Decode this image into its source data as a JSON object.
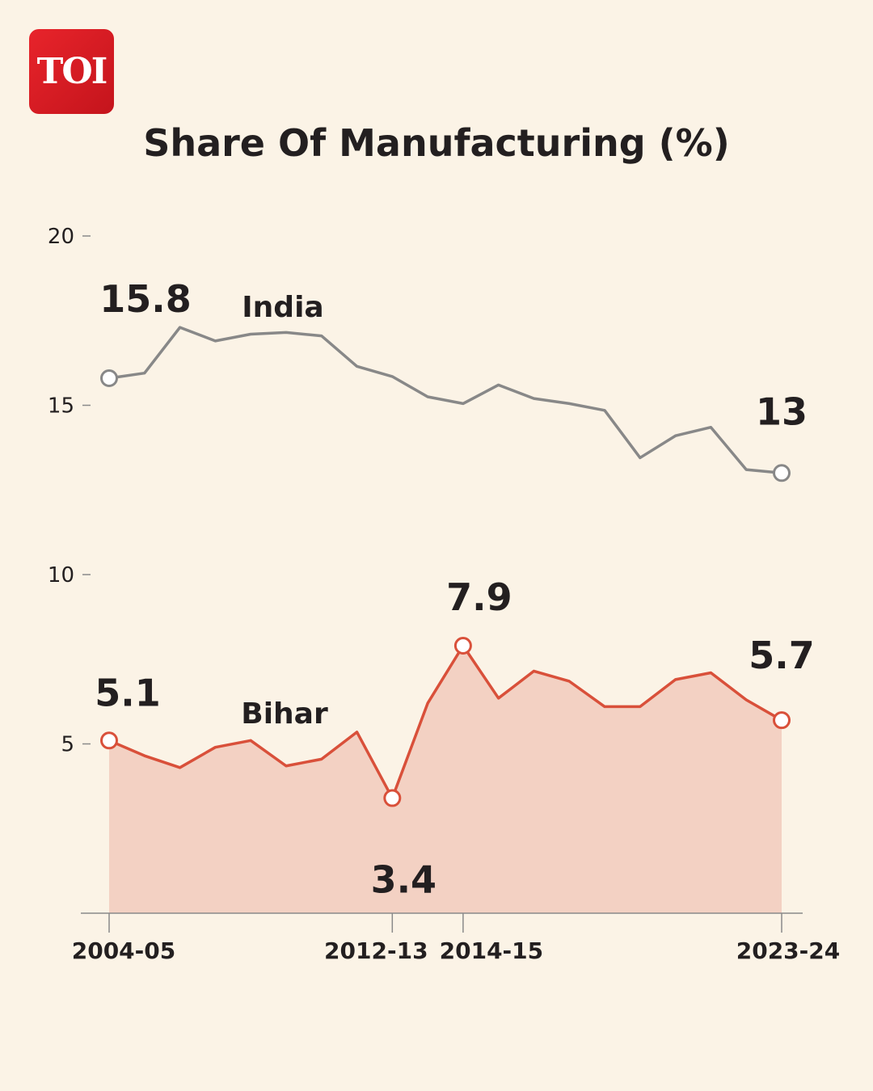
{
  "brand": {
    "logo_text": "TOI"
  },
  "chart_data": {
    "type": "line",
    "title": "Share Of Manufacturing (%)",
    "xlabel": "",
    "ylabel": "",
    "ylim": [
      0,
      20
    ],
    "yticks": [
      20,
      15,
      10,
      5
    ],
    "x_tick_labels": [
      "2004-05",
      "2012-13",
      "2014-15",
      "2023-24"
    ],
    "x_tick_indices": [
      0,
      8,
      10,
      19
    ],
    "series": [
      {
        "name": "India",
        "color": "#888888",
        "fill": false,
        "values": [
          15.8,
          15.95,
          17.3,
          16.9,
          17.1,
          17.15,
          17.05,
          16.15,
          15.85,
          15.25,
          15.05,
          15.6,
          15.2,
          15.05,
          14.85,
          13.45,
          14.1,
          14.35,
          13.1,
          13.0
        ]
      },
      {
        "name": "Bihar",
        "color": "#d9503a",
        "fill": true,
        "fill_color": "#f3d1c3",
        "values": [
          5.1,
          4.65,
          4.3,
          4.9,
          5.1,
          4.35,
          4.55,
          5.35,
          3.4,
          6.2,
          7.9,
          6.35,
          7.15,
          6.85,
          6.1,
          6.1,
          6.9,
          7.1,
          6.3,
          5.7
        ]
      }
    ],
    "annotations": [
      {
        "series": "India",
        "index": 0,
        "text": "15.8",
        "marker": true
      },
      {
        "series": "India",
        "index": 19,
        "text": "13",
        "marker": true
      },
      {
        "series": "Bihar",
        "index": 0,
        "text": "5.1",
        "marker": true
      },
      {
        "series": "Bihar",
        "index": 8,
        "text": "3.4",
        "marker": true
      },
      {
        "series": "Bihar",
        "index": 10,
        "text": "7.9",
        "marker": true
      },
      {
        "series": "Bihar",
        "index": 19,
        "text": "5.7",
        "marker": true
      }
    ],
    "series_labels": [
      "India",
      "Bihar"
    ]
  }
}
